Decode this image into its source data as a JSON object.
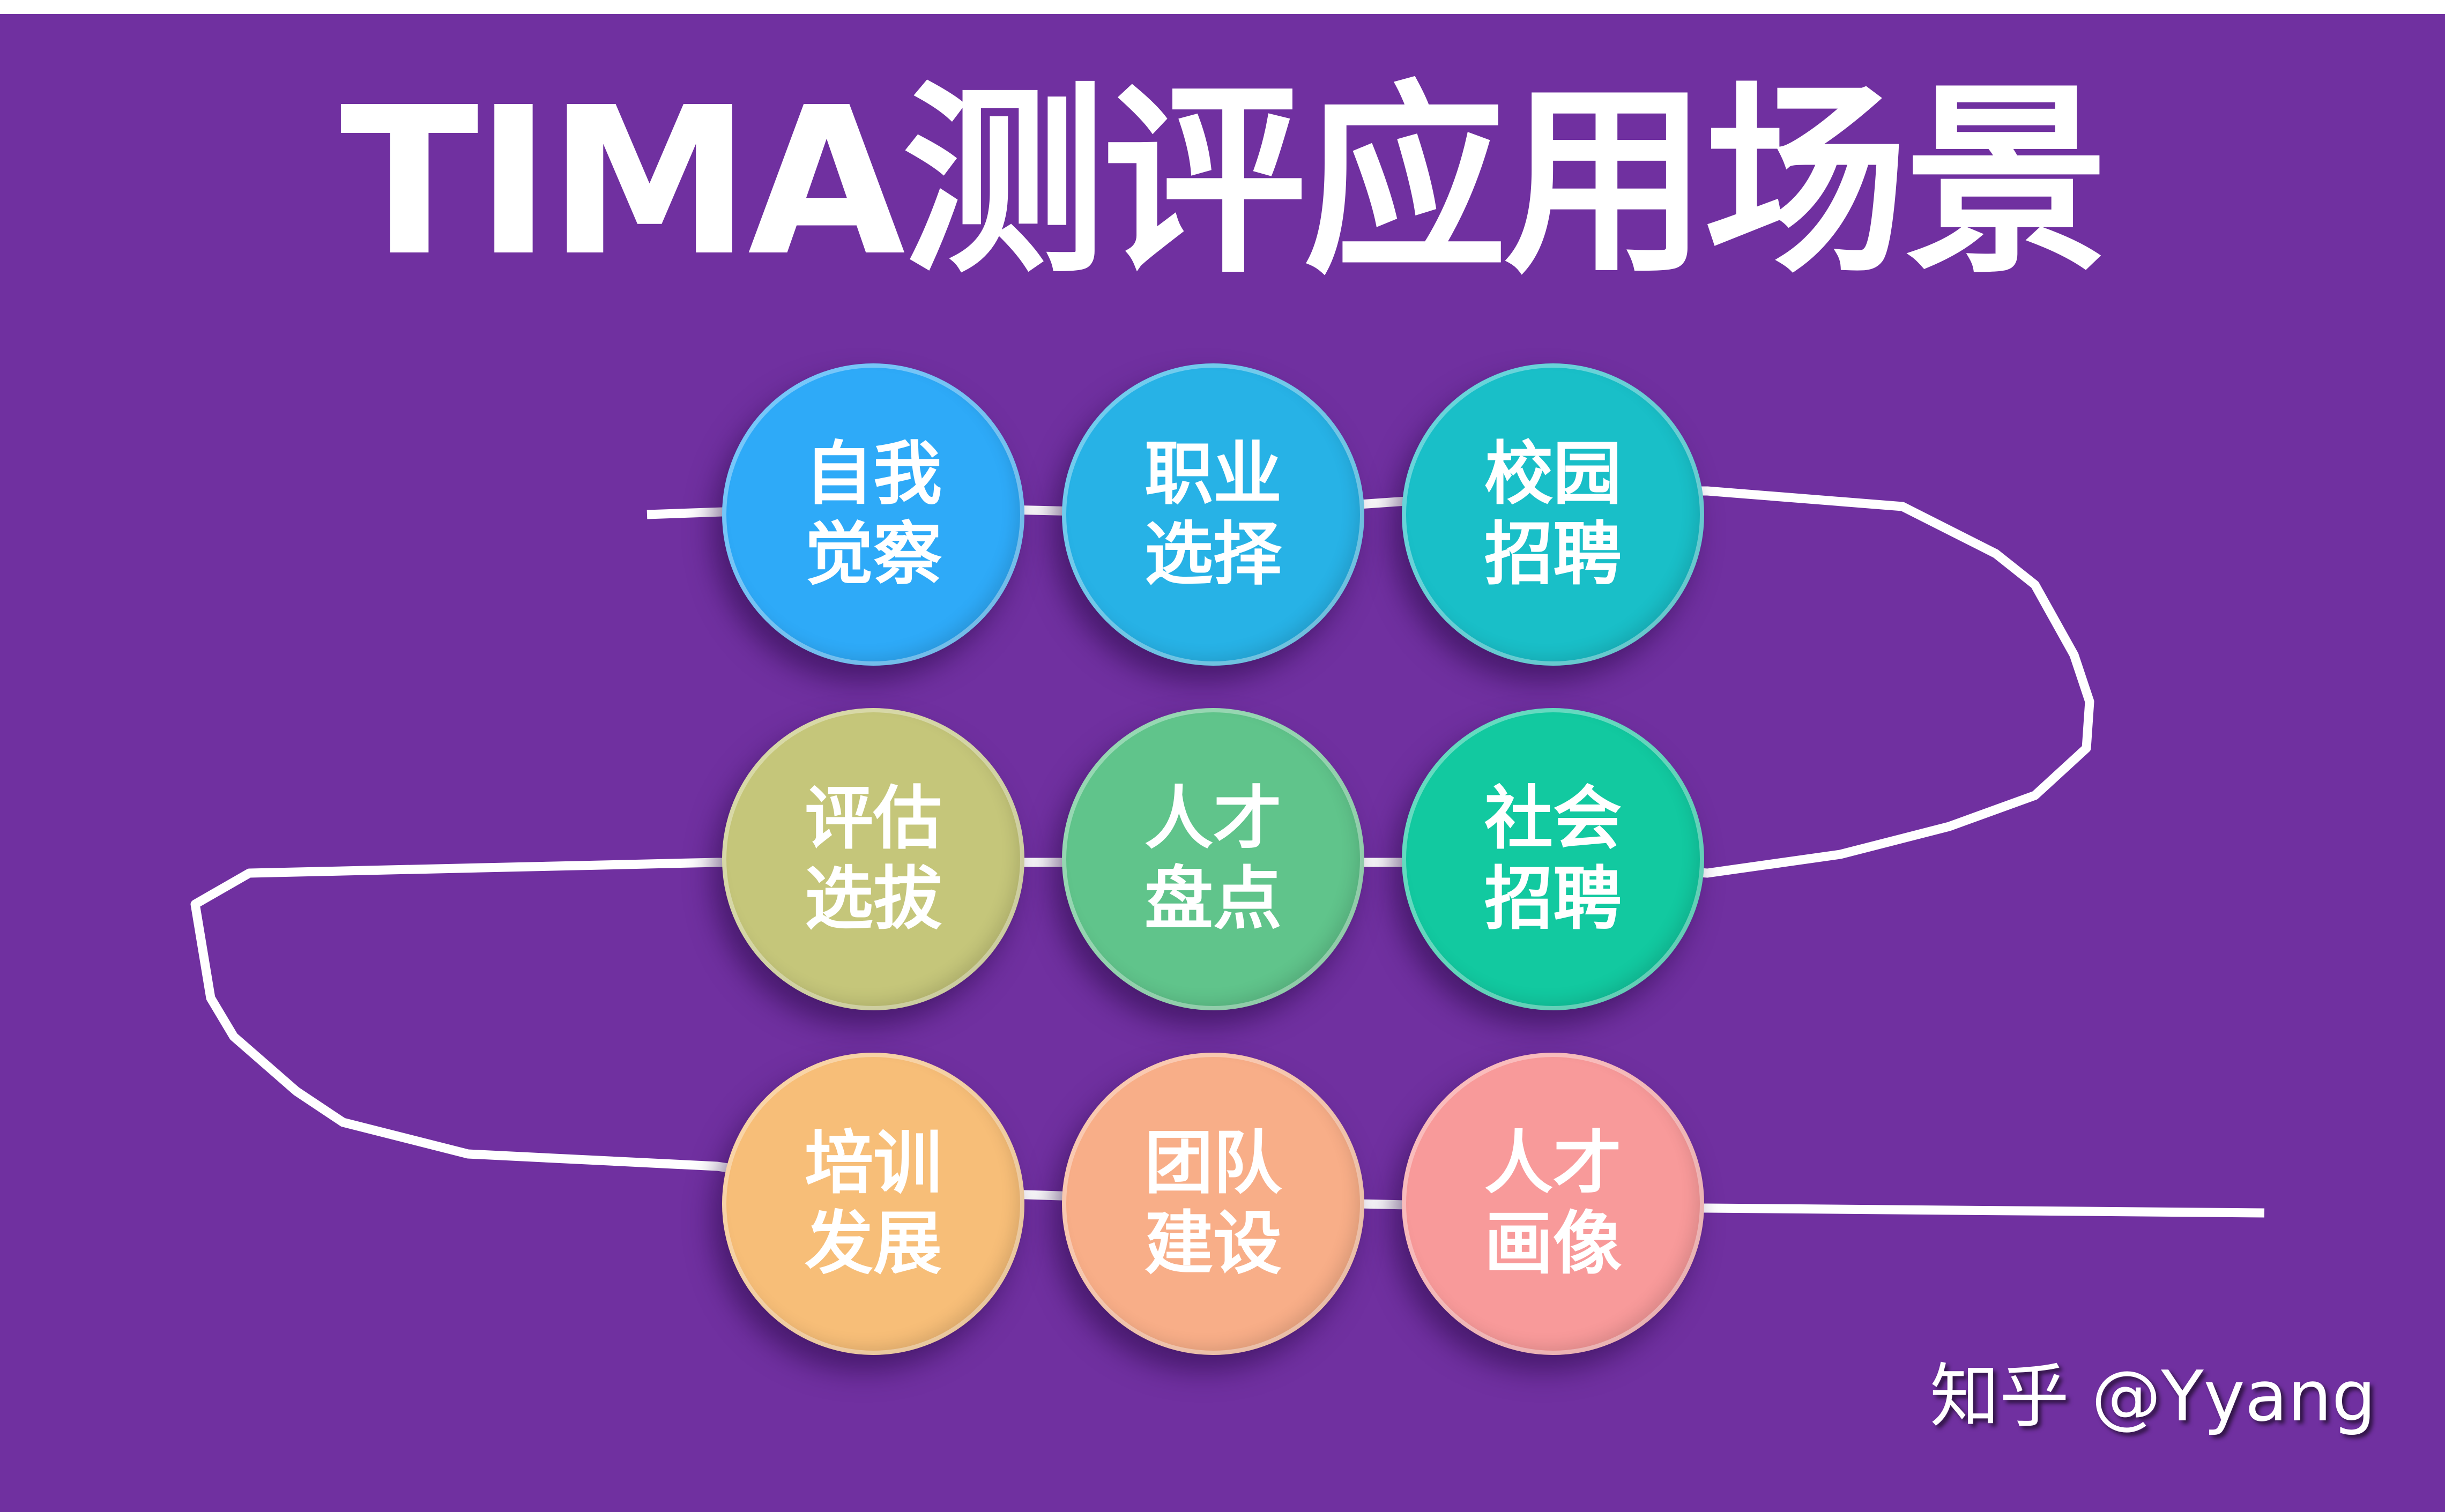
{
  "title": "TIMA测评应用场景",
  "watermark": "知乎 @Yyang",
  "colors": {
    "background": "#7030A0",
    "line": "#FFFFFF"
  },
  "scenarios": [
    {
      "line1": "自我",
      "line2": "觉察",
      "color": "#2EAAF8"
    },
    {
      "line1": "职业",
      "line2": "选择",
      "color": "#27B2E6"
    },
    {
      "line1": "校园",
      "line2": "招聘",
      "color": "#19BFC8"
    },
    {
      "line1": "评估",
      "line2": "选拔",
      "color": "#C5C67A"
    },
    {
      "line1": "人才",
      "line2": "盘点",
      "color": "#60C48B"
    },
    {
      "line1": "社会",
      "line2": "招聘",
      "color": "#12C9A0"
    },
    {
      "line1": "培训",
      "line2": "发展",
      "color": "#F7BE78"
    },
    {
      "line1": "团队",
      "line2": "建设",
      "color": "#F8AE88"
    },
    {
      "line1": "人才",
      "line2": "画像",
      "color": "#F89A9A"
    }
  ]
}
